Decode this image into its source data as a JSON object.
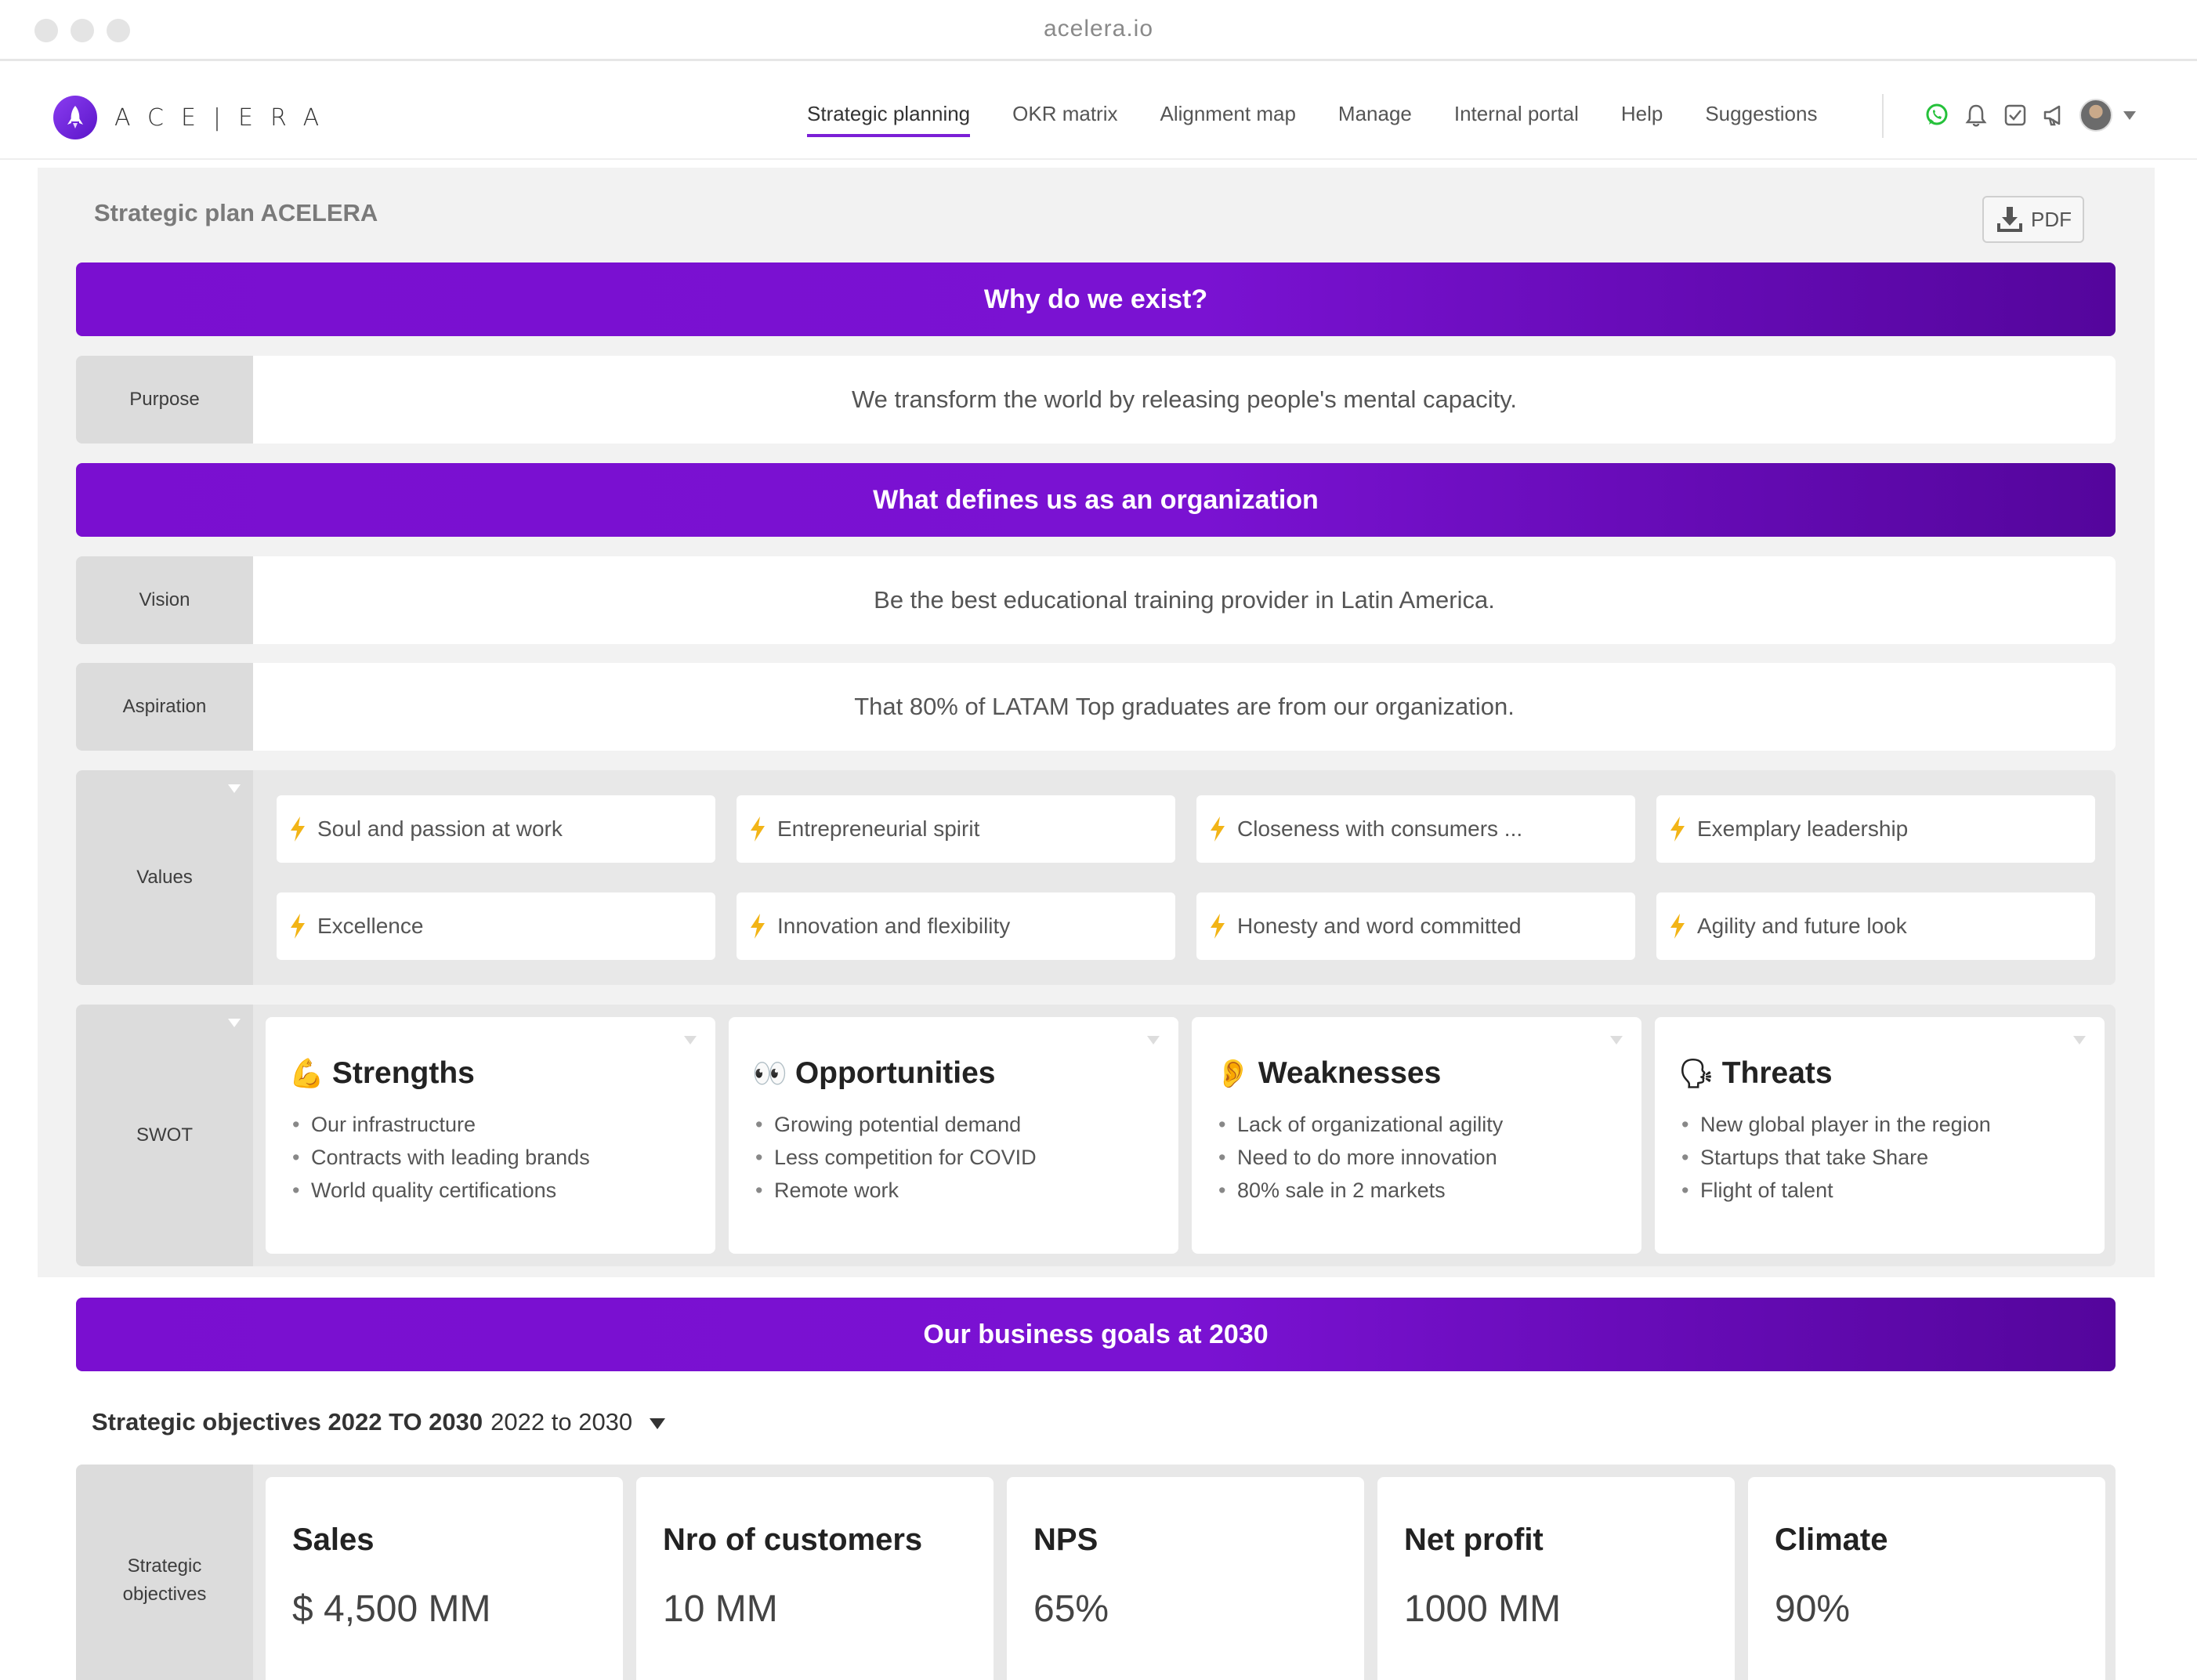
{
  "browser": {
    "url": "acelera.io"
  },
  "brand": {
    "name": "ACE|ERA"
  },
  "nav": {
    "items": [
      {
        "label": "Strategic planning",
        "active": true
      },
      {
        "label": "OKR matrix"
      },
      {
        "label": "Alignment map"
      },
      {
        "label": "Manage"
      },
      {
        "label": "Internal portal"
      },
      {
        "label": "Help"
      },
      {
        "label": "Suggestions"
      }
    ],
    "icons": [
      "whatsapp-icon",
      "bell-icon",
      "checkbox-icon",
      "megaphone-icon",
      "avatar",
      "chevron-down-icon"
    ]
  },
  "plan": {
    "title": "Strategic plan ACELERA",
    "pdf_label": "PDF"
  },
  "sections": {
    "why": "Why do we exist?",
    "defines": "What defines us as an organization",
    "goals": "Our business goals at 2030"
  },
  "purpose": {
    "label": "Purpose",
    "text": "We transform the world by releasing people's mental capacity."
  },
  "vision": {
    "label": "Vision",
    "text": "Be the best educational training provider in Latin America."
  },
  "aspiration": {
    "label": "Aspiration",
    "text": "That 80% of LATAM Top graduates are from our organization."
  },
  "values": {
    "label": "Values",
    "items": [
      "Soul and passion at work",
      "Entrepreneurial spirit",
      "Closeness with consumers ...",
      "Exemplary leadership",
      "Excellence",
      "Innovation and flexibility",
      "Honesty and word committed",
      "Agility and future look"
    ]
  },
  "swot": {
    "label": "SWOT",
    "cards": [
      {
        "emoji": "💪",
        "title": "Strengths",
        "items": [
          "Our infrastructure",
          "Contracts with leading brands",
          "World quality certifications"
        ]
      },
      {
        "emoji": "👀",
        "title": "Opportunities",
        "items": [
          "Growing potential demand",
          "Less competition for COVID",
          "Remote work"
        ]
      },
      {
        "emoji": "👂",
        "title": "Weaknesses",
        "items": [
          "Lack of organizational agility",
          "Need to do more innovation",
          "80% sale in 2 markets"
        ]
      },
      {
        "emoji": "🗣",
        "title": "Threats",
        "items": [
          "New global player in the region",
          "Startups that take Share",
          "Flight of talent"
        ]
      }
    ]
  },
  "objectives": {
    "title_bold": "Strategic objectives 2022 TO 2030",
    "title_range": "2022 to 2030",
    "label": "Strategic objectives",
    "cards": [
      {
        "name": "Sales",
        "value": "$ 4,500 MM"
      },
      {
        "name": "Nro of customers",
        "value": "10 MM"
      },
      {
        "name": "NPS",
        "value": "65%"
      },
      {
        "name": "Net profit",
        "value": "1000 MM"
      },
      {
        "name": "Climate",
        "value": "90%"
      }
    ]
  },
  "colors": {
    "accent": "#7a0fd0",
    "accent_dark": "#54059c",
    "bolt": "#f2b416",
    "whatsapp": "#25c13a"
  }
}
